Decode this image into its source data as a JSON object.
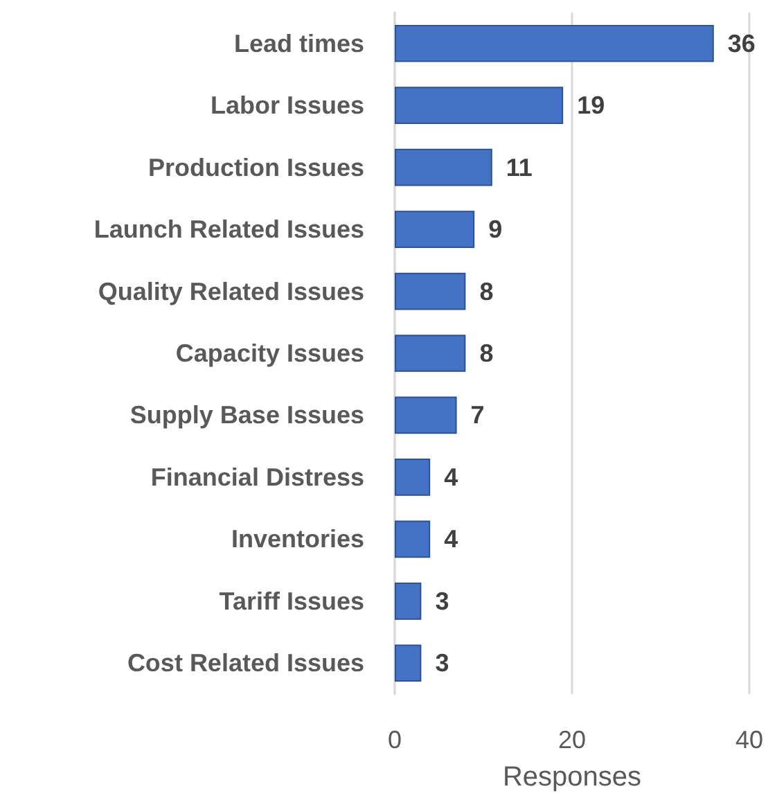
{
  "chart_data": {
    "type": "bar",
    "orientation": "horizontal",
    "xlabel": "Responses",
    "categories": [
      "Lead times",
      "Labor Issues",
      "Production Issues",
      "Launch Related Issues",
      "Quality Related Issues",
      "Capacity Issues",
      "Supply Base Issues",
      "Financial Distress",
      "Inventories",
      "Tariff Issues",
      "Cost Related Issues"
    ],
    "values": [
      36,
      19,
      11,
      9,
      8,
      8,
      7,
      4,
      4,
      3,
      3
    ],
    "color": "#4472c4",
    "xlim": [
      0,
      40
    ],
    "xticks": [
      0,
      20,
      40
    ],
    "grid": "x",
    "data_labels": true
  }
}
